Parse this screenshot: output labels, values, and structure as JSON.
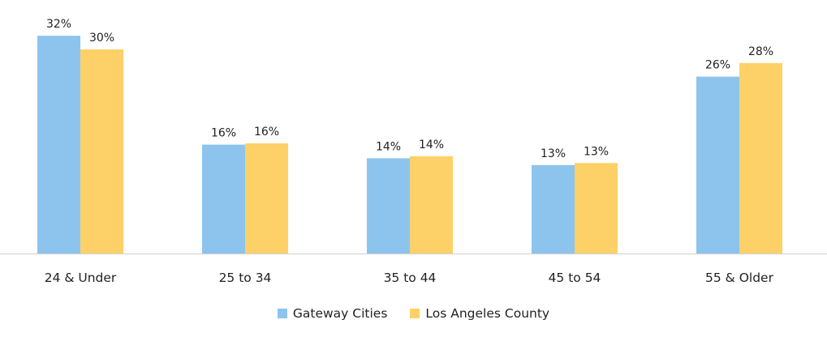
{
  "chart_data": {
    "type": "bar",
    "title": "",
    "xlabel": "",
    "ylabel": "",
    "ylim": [
      0,
      32
    ],
    "grid": false,
    "legend_position": "bottom-center",
    "categories": [
      "24 & Under",
      "25 to 34",
      "35 to 44",
      "45 to 54",
      "55 & Older"
    ],
    "series": [
      {
        "name": "Gateway Cities",
        "color": "#8CC4EE",
        "values": [
          32,
          16,
          14,
          13,
          26
        ],
        "labels": [
          "32%",
          "16%",
          "14%",
          "13%",
          "26%"
        ]
      },
      {
        "name": "Los Angeles County",
        "color": "#FDD168",
        "values": [
          30,
          16.2,
          14.3,
          13.3,
          28
        ],
        "labels": [
          "30%",
          "16%",
          "14%",
          "13%",
          "28%"
        ]
      }
    ]
  }
}
